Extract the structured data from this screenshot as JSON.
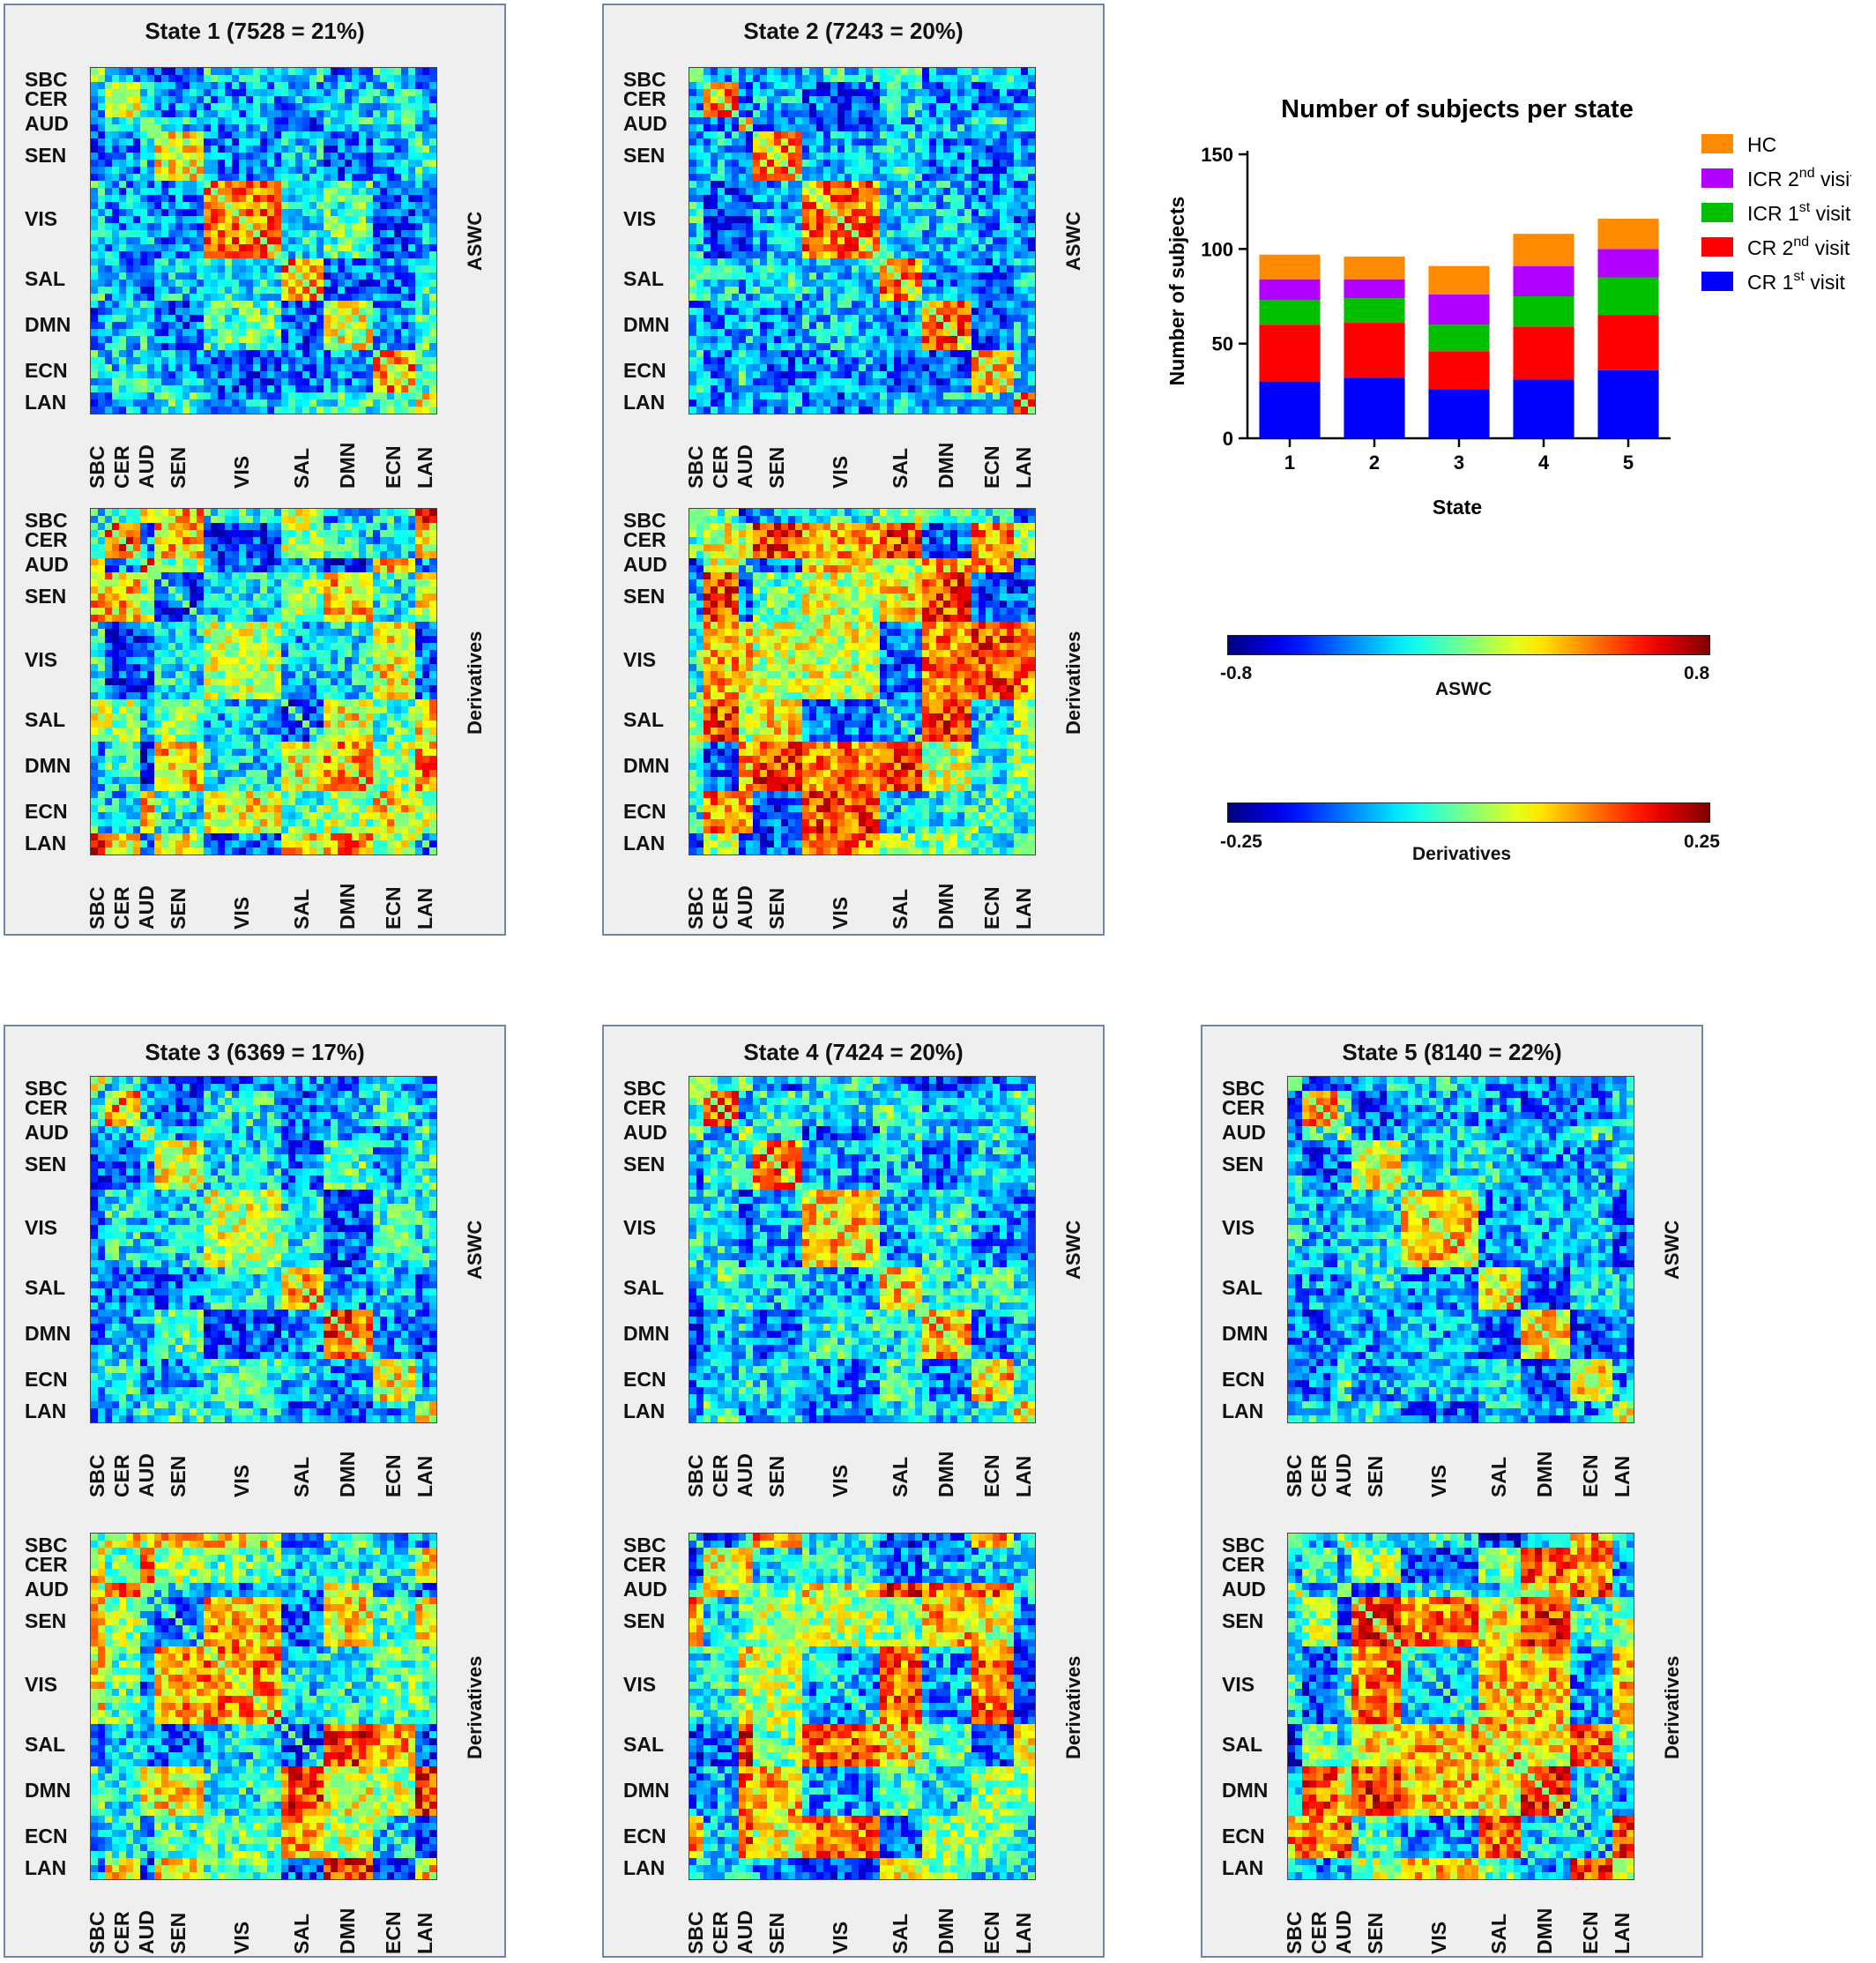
{
  "panels": [
    {
      "title": "State 1 (7528 = 21%)",
      "seed": 11,
      "top_side": "ASWC",
      "bottom_side": "Derivatives"
    },
    {
      "title": "State 2 (7243 = 20%)",
      "seed": 23,
      "top_side": "ASWC",
      "bottom_side": "Derivatives"
    },
    {
      "title": "State 3 (6369 = 17%)",
      "seed": 37,
      "top_side": "ASWC",
      "bottom_side": "Derivatives"
    },
    {
      "title": "State 4 (7424 = 20%)",
      "seed": 41,
      "top_side": "ASWC",
      "bottom_side": "Derivatives"
    },
    {
      "title": "State 5 (8140 = 22%)",
      "seed": 53,
      "top_side": "ASWC",
      "bottom_side": "Derivatives"
    }
  ],
  "network_labels": [
    "SBC",
    "CER",
    "AUD",
    "SEN",
    "VIS",
    "SAL",
    "DMN",
    "ECN",
    "LAN"
  ],
  "component_ids": [
    "15",
    "39",
    "25",
    "26",
    "16",
    "44",
    "47",
    "37",
    "13",
    "5",
    "59",
    "55",
    "66",
    "35",
    "33",
    "6",
    "63",
    "40",
    "34",
    "57",
    "53",
    "67",
    "70",
    "69",
    "43",
    "41",
    "64",
    "12",
    "65",
    "27",
    "51",
    "9",
    "46",
    "42",
    "22",
    "50",
    "24",
    "36",
    "49",
    "58",
    "45",
    "2",
    "56",
    "8",
    "14",
    "38",
    "10",
    "48",
    "19"
  ],
  "colors": {
    "panel_border": "#6f86a6",
    "panel_bg": "#efefef"
  },
  "colorbars": [
    {
      "min_label": "-0.8",
      "max_label": "0.8",
      "label": "ASWC"
    },
    {
      "min_label": "-0.25",
      "max_label": "0.25",
      "label": "Derivatives"
    }
  ],
  "chart_data": {
    "type": "bar",
    "stacked": true,
    "title": "Number of subjects per state",
    "xlabel": "State",
    "ylabel": "Number of subjects",
    "categories": [
      "1",
      "2",
      "3",
      "4",
      "5"
    ],
    "ylim": [
      0,
      150
    ],
    "yticks": [
      "0",
      "50",
      "100",
      "150"
    ],
    "series": [
      {
        "name": "CR 1st visit",
        "color": "#0000ff",
        "values": [
          30,
          32,
          26,
          31,
          36
        ]
      },
      {
        "name": "CR 2nd visit",
        "color": "#ff0000",
        "values": [
          30,
          29,
          20,
          28,
          29
        ]
      },
      {
        "name": "ICR 1st visit",
        "color": "#00c000",
        "values": [
          13,
          13,
          14,
          16,
          20
        ]
      },
      {
        "name": "ICR 2nd visit",
        "color": "#b300ff",
        "values": [
          11,
          10,
          16,
          16,
          15
        ]
      },
      {
        "name": "HC",
        "color": "#ff8a00",
        "values": [
          13,
          12,
          15,
          17,
          16
        ]
      }
    ],
    "legend": {
      "placement": "right",
      "items": [
        {
          "pre": "HC",
          "sup": "",
          "post": ""
        },
        {
          "pre": "ICR 2",
          "sup": "nd",
          "post": " visit"
        },
        {
          "pre": "ICR 1",
          "sup": "st",
          "post": " visit"
        },
        {
          "pre": "CR 2",
          "sup": "nd",
          "post": " visit"
        },
        {
          "pre": "CR 1",
          "sup": "st",
          "post": " visit"
        }
      ]
    }
  }
}
